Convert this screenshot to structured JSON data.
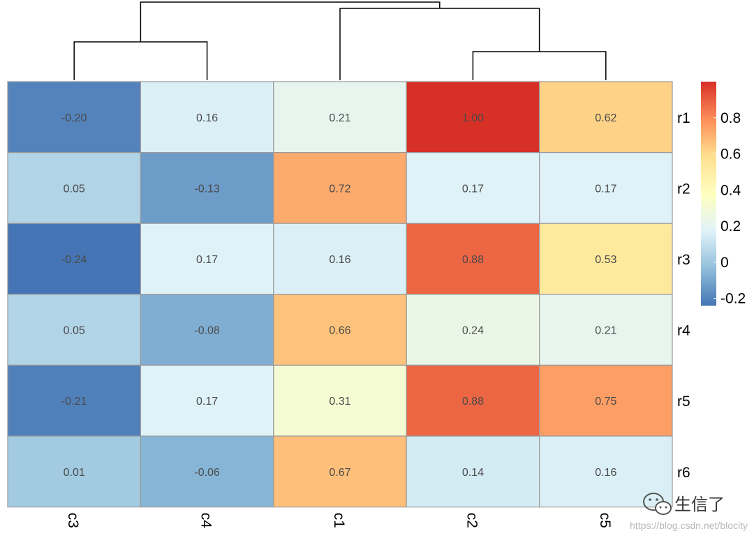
{
  "chart_data": {
    "type": "heatmap",
    "title": "",
    "rows": [
      "r1",
      "r2",
      "r3",
      "r4",
      "r5",
      "r6"
    ],
    "columns": [
      "c3",
      "c4",
      "c1",
      "c2",
      "c5"
    ],
    "values": [
      [
        -0.2,
        0.16,
        0.21,
        1.0,
        0.62
      ],
      [
        0.05,
        -0.13,
        0.72,
        0.17,
        0.17
      ],
      [
        -0.24,
        0.17,
        0.16,
        0.88,
        0.53
      ],
      [
        0.05,
        -0.08,
        0.66,
        0.24,
        0.21
      ],
      [
        -0.21,
        0.17,
        0.31,
        0.88,
        0.75
      ],
      [
        0.01,
        -0.06,
        0.67,
        0.14,
        0.16
      ]
    ],
    "value_labels": [
      [
        "-0.20",
        "0.16",
        "0.21",
        "1.00",
        "0.62"
      ],
      [
        "0.05",
        "-0.13",
        "0.72",
        "0.17",
        "0.17"
      ],
      [
        "-0.24",
        "0.17",
        "0.16",
        "0.88",
        "0.53"
      ],
      [
        "0.05",
        "-0.08",
        "0.66",
        "0.24",
        "0.21"
      ],
      [
        "-0.21",
        "0.17",
        "0.31",
        "0.88",
        "0.75"
      ],
      [
        "0.01",
        "-0.06",
        "0.67",
        "0.14",
        "0.16"
      ]
    ],
    "color_range": [
      -0.24,
      1.0
    ],
    "color_scale": [
      "#4575b4",
      "#91bfdb",
      "#e0f3f8",
      "#ffffbf",
      "#fee090",
      "#fc8d59",
      "#d73027"
    ],
    "cell_border_color": "#9a9a9a",
    "legend": {
      "position": "right",
      "ticks": [
        0.8,
        0.6,
        0.4,
        0.2,
        0,
        -0.2
      ],
      "tick_labels": [
        "0.8",
        "0.6",
        "0.4",
        "0.2",
        "0",
        "-0.2"
      ]
    },
    "column_dendrogram": {
      "leaves": [
        "c3",
        "c4",
        "c1",
        "c2",
        "c5"
      ],
      "merges": [
        {
          "left": "c2",
          "right": "c5",
          "height": 1
        },
        {
          "left": "c3",
          "right": "c4",
          "height": 2
        },
        {
          "left": "c1",
          "right": "c2|c5",
          "height": 3
        },
        {
          "left": "c3|c4",
          "right": "c1|c2|c5",
          "height": 4
        }
      ]
    }
  },
  "watermark": {
    "brand": "生信了",
    "url": "https://blog.csdn.net/blocity",
    "icon": "wechat-icon"
  }
}
